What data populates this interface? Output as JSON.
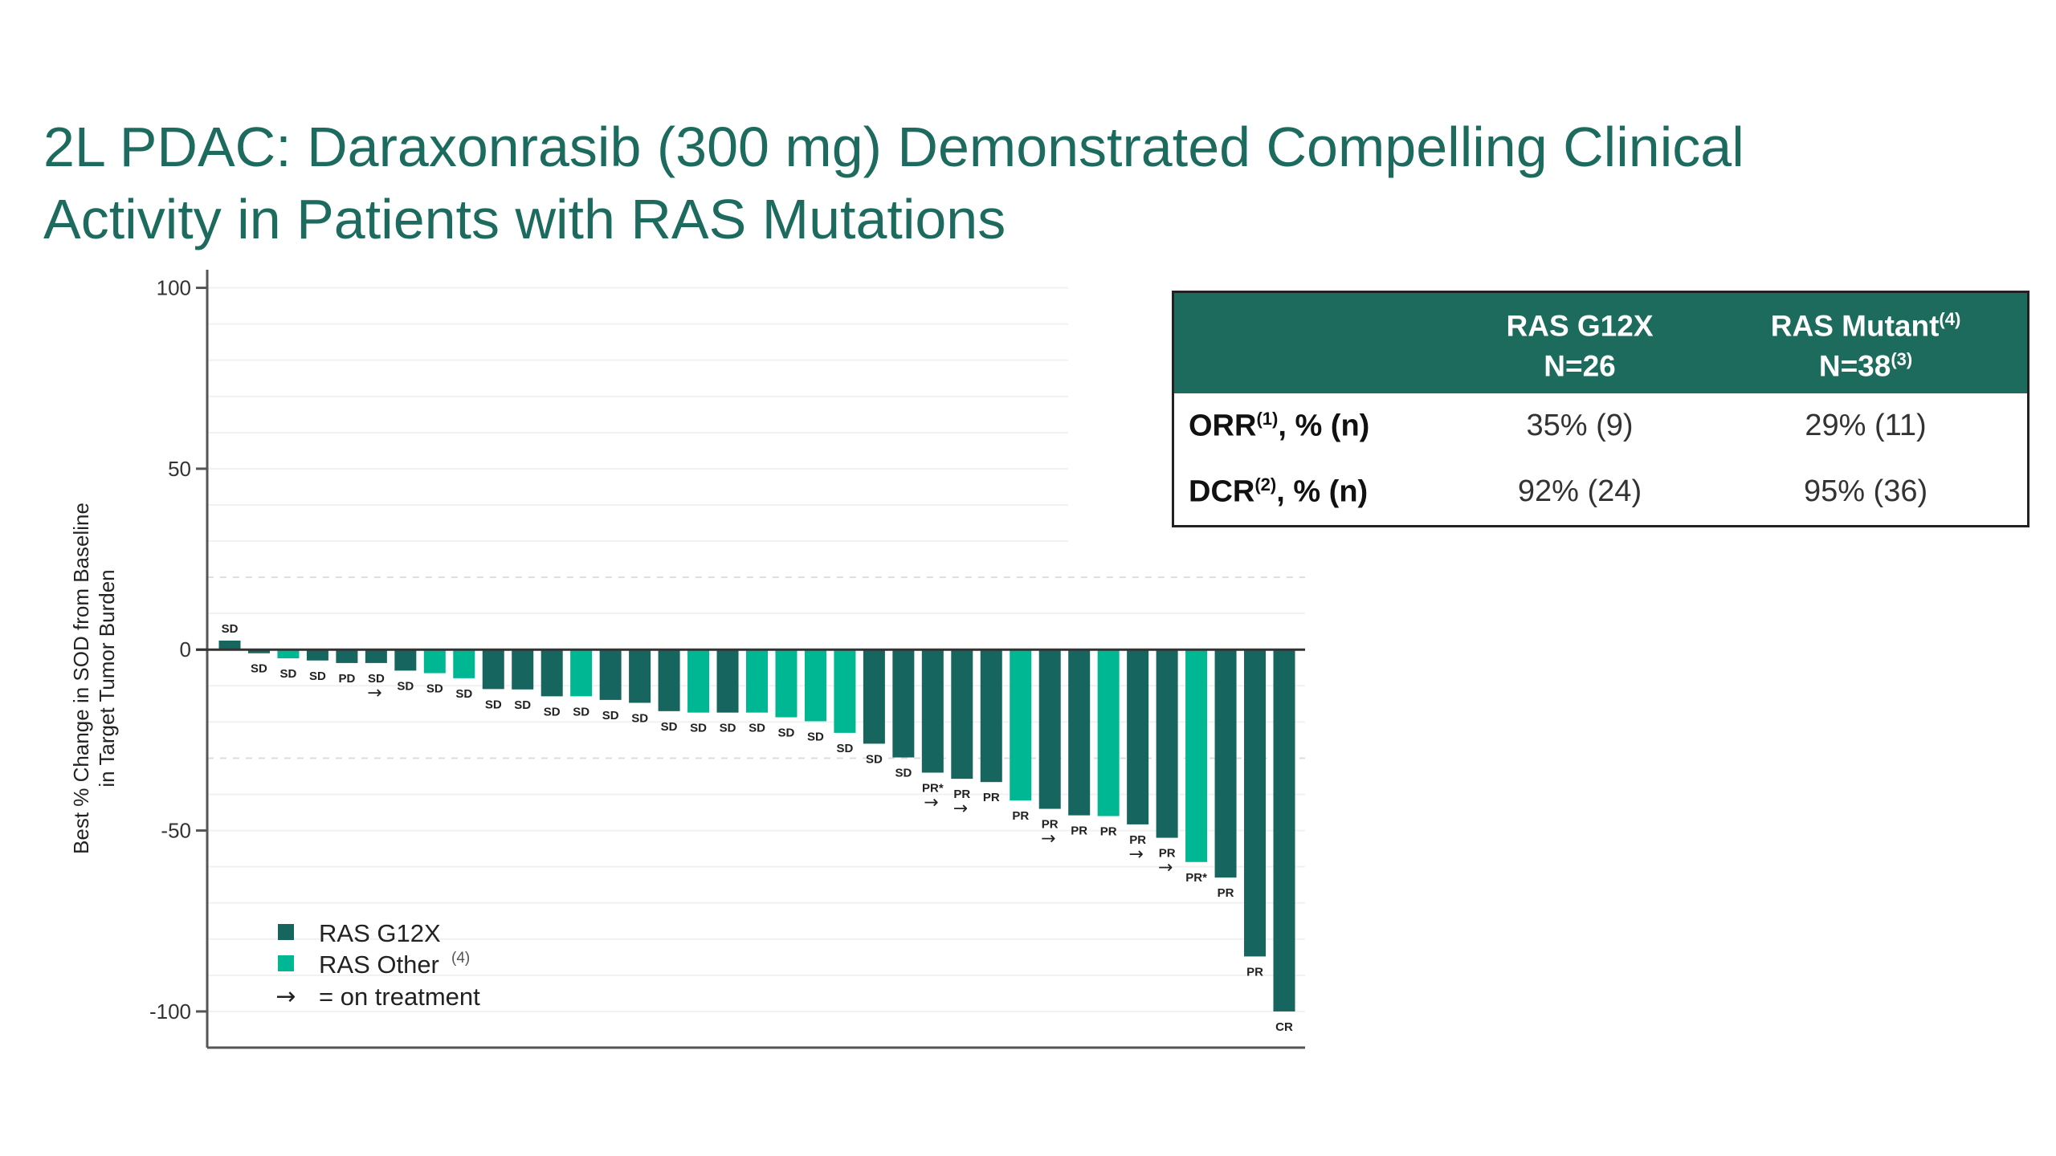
{
  "title": {
    "line1": "2L PDAC: Daraxonrasib (300 mg) Demonstrated Compelling Clinical",
    "line2": "Activity in Patients with RAS Mutations"
  },
  "colors": {
    "title": "#1d6b5f",
    "g12x": "#17655f",
    "other": "#00b793",
    "table_header": "#1d6b5d"
  },
  "chart_data": {
    "type": "bar",
    "title": "",
    "xlabel": "",
    "ylabel_line1": "Best % Change in SOD from Baseline",
    "ylabel_line2": "in Target Tumor Burden",
    "ylim": [
      -110,
      105
    ],
    "yticks": [
      100,
      50,
      0,
      -50,
      -100
    ],
    "grid": "horizontal, faint",
    "legend_placement": "bottom-left",
    "legend": [
      {
        "key": "g12x",
        "label": "RAS G12X",
        "sup": ""
      },
      {
        "key": "other",
        "label": "RAS Other",
        "sup": "(4)"
      },
      {
        "key": "arrow",
        "label": "= on treatment",
        "sup": ""
      }
    ],
    "bars": [
      {
        "value": 2.5,
        "group": "g12x",
        "response": "SD",
        "on_treatment": false
      },
      {
        "value": -1,
        "group": "g12x",
        "response": "SD",
        "on_treatment": false
      },
      {
        "value": -2.4,
        "group": "other",
        "response": "SD",
        "on_treatment": false
      },
      {
        "value": -3,
        "group": "g12x",
        "response": "SD",
        "on_treatment": false
      },
      {
        "value": -3.7,
        "group": "g12x",
        "response": "PD",
        "on_treatment": false
      },
      {
        "value": -3.7,
        "group": "g12x",
        "response": "SD",
        "on_treatment": true
      },
      {
        "value": -5.8,
        "group": "g12x",
        "response": "SD",
        "on_treatment": false
      },
      {
        "value": -6.5,
        "group": "other",
        "response": "SD",
        "on_treatment": false
      },
      {
        "value": -7.9,
        "group": "other",
        "response": "SD",
        "on_treatment": false
      },
      {
        "value": -10.9,
        "group": "g12x",
        "response": "SD",
        "on_treatment": false
      },
      {
        "value": -11,
        "group": "g12x",
        "response": "SD",
        "on_treatment": false
      },
      {
        "value": -12.9,
        "group": "g12x",
        "response": "SD",
        "on_treatment": false
      },
      {
        "value": -12.9,
        "group": "other",
        "response": "SD",
        "on_treatment": false
      },
      {
        "value": -13.9,
        "group": "g12x",
        "response": "SD",
        "on_treatment": false
      },
      {
        "value": -14.7,
        "group": "g12x",
        "response": "SD",
        "on_treatment": false
      },
      {
        "value": -17,
        "group": "g12x",
        "response": "SD",
        "on_treatment": false
      },
      {
        "value": -17.4,
        "group": "other",
        "response": "SD",
        "on_treatment": false
      },
      {
        "value": -17.4,
        "group": "g12x",
        "response": "SD",
        "on_treatment": false
      },
      {
        "value": -17.4,
        "group": "other",
        "response": "SD",
        "on_treatment": false
      },
      {
        "value": -18.7,
        "group": "other",
        "response": "SD",
        "on_treatment": false
      },
      {
        "value": -19.8,
        "group": "other",
        "response": "SD",
        "on_treatment": false
      },
      {
        "value": -23,
        "group": "other",
        "response": "SD",
        "on_treatment": false
      },
      {
        "value": -26,
        "group": "g12x",
        "response": "SD",
        "on_treatment": false
      },
      {
        "value": -29.8,
        "group": "g12x",
        "response": "SD",
        "on_treatment": false
      },
      {
        "value": -34,
        "group": "g12x",
        "response": "PR*",
        "on_treatment": true
      },
      {
        "value": -35.7,
        "group": "g12x",
        "response": "PR",
        "on_treatment": true
      },
      {
        "value": -36.6,
        "group": "g12x",
        "response": "PR",
        "on_treatment": false
      },
      {
        "value": -41.7,
        "group": "other",
        "response": "PR",
        "on_treatment": false
      },
      {
        "value": -44,
        "group": "g12x",
        "response": "PR",
        "on_treatment": true
      },
      {
        "value": -45.8,
        "group": "g12x",
        "response": "PR",
        "on_treatment": false
      },
      {
        "value": -46,
        "group": "other",
        "response": "PR",
        "on_treatment": false
      },
      {
        "value": -48.3,
        "group": "g12x",
        "response": "PR",
        "on_treatment": true
      },
      {
        "value": -52,
        "group": "g12x",
        "response": "PR",
        "on_treatment": true
      },
      {
        "value": -58.7,
        "group": "other",
        "response": "PR*",
        "on_treatment": false
      },
      {
        "value": -63,
        "group": "g12x",
        "response": "PR",
        "on_treatment": false
      },
      {
        "value": -84.8,
        "group": "g12x",
        "response": "PR",
        "on_treatment": false
      },
      {
        "value": -100,
        "group": "g12x",
        "response": "CR",
        "on_treatment": false
      }
    ]
  },
  "table": {
    "columns": [
      {
        "name": "RAS G12X",
        "name_sup": "",
        "n": "N=26",
        "n_sup": ""
      },
      {
        "name": "RAS Mutant",
        "name_sup": "(4)",
        "n": "N=38",
        "n_sup": "(3)"
      }
    ],
    "rows": [
      {
        "label": "ORR",
        "label_sup": "(1)",
        "label_suffix": ", % (n)",
        "values": [
          "35% (9)",
          "29% (11)"
        ]
      },
      {
        "label": "DCR",
        "label_sup": "(2)",
        "label_suffix": ", % (n)",
        "values": [
          "92% (24)",
          "95% (36)"
        ]
      }
    ]
  }
}
